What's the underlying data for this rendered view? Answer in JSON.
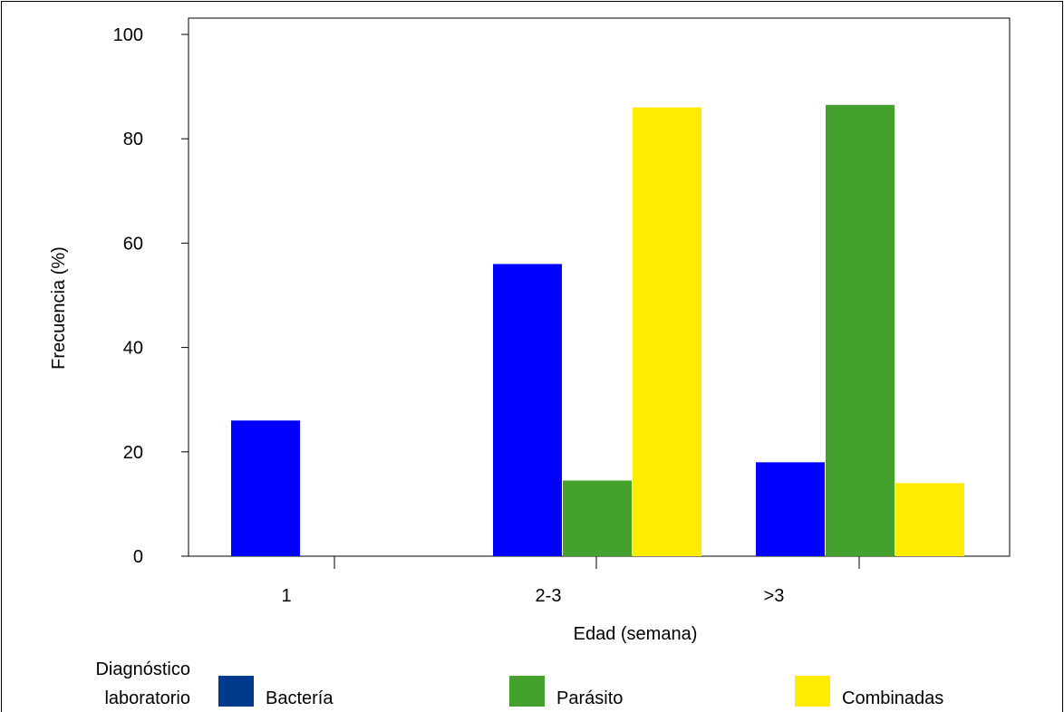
{
  "chart_data": {
    "type": "bar",
    "title": "",
    "xlabel": "Edad (semana)",
    "ylabel": "Frecuencia (%)",
    "categories": [
      "1",
      "2-3",
      ">3"
    ],
    "yticks": [
      "0",
      "20",
      "40",
      "60",
      "80",
      "100"
    ],
    "ylim": [
      0,
      100
    ],
    "grid": false,
    "legend_position": "bottom",
    "legend_title_lines": [
      "Diagnóstico",
      "laboratorio"
    ],
    "series": [
      {
        "name": "Bactería",
        "values": [
          26,
          56,
          18
        ],
        "color": "#0000ff",
        "legend_color": "#003a8c"
      },
      {
        "name": "Parásito",
        "values": [
          0,
          14.5,
          86.5
        ],
        "color": "#45a12e",
        "legend_color": "#45a12e"
      },
      {
        "name": "Combinadas",
        "values": [
          0,
          86,
          14
        ],
        "color": "#ffec00",
        "legend_color": "#ffec00"
      }
    ]
  }
}
